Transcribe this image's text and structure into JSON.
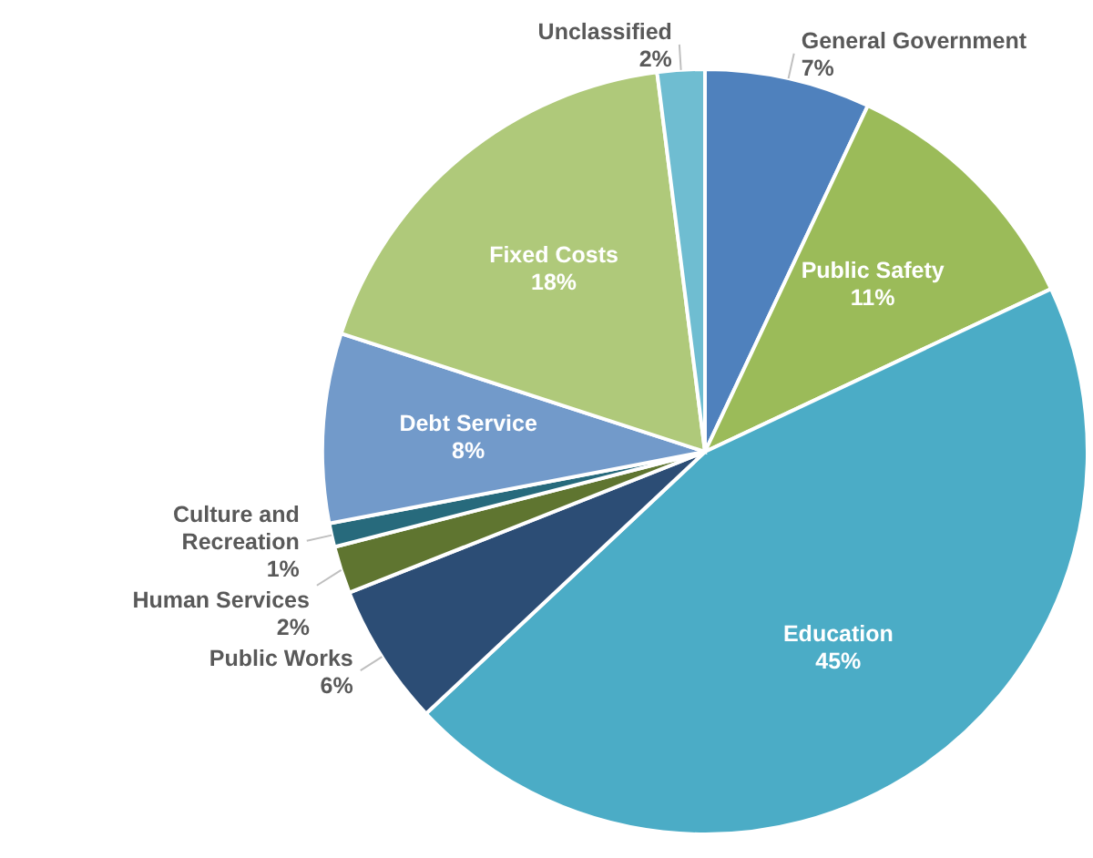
{
  "chart_data": {
    "type": "pie",
    "categories": [
      "General Government",
      "Public Safety",
      "Education",
      "Public Works",
      "Human Services",
      "Culture and Recreation",
      "Debt Service",
      "Fixed Costs",
      "Unclassified"
    ],
    "values": [
      7,
      11,
      45,
      6,
      2,
      1,
      8,
      18,
      2
    ],
    "colors": [
      "#4f81bd",
      "#9bbb59",
      "#4bacc6",
      "#2c4d75",
      "#5f7530",
      "#276a7c",
      "#729aca",
      "#afc97a",
      "#6fbdd1"
    ],
    "value_labels": [
      "7%",
      "11%",
      "45%",
      "6%",
      "2%",
      "1%",
      "8%",
      "18%",
      "2%"
    ]
  }
}
